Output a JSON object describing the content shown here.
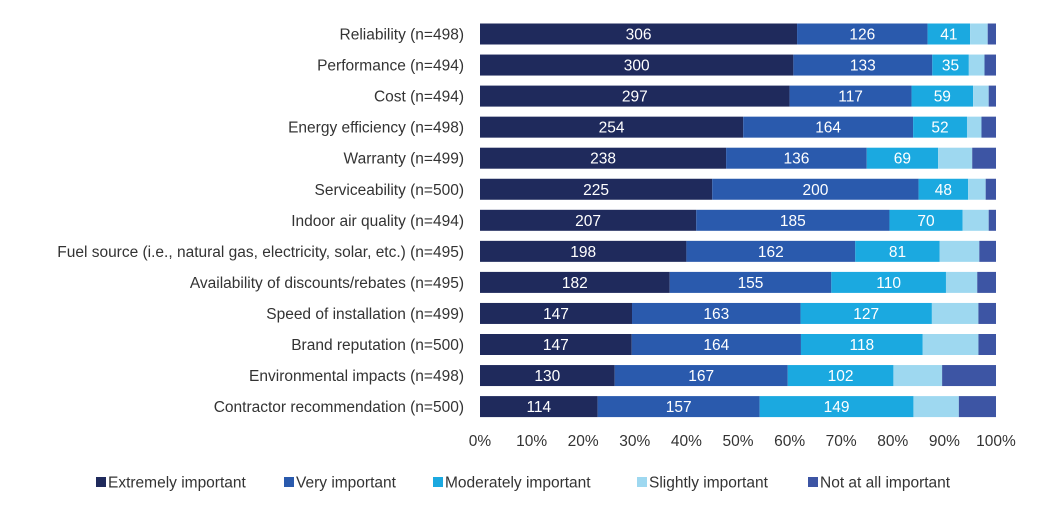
{
  "chart_data": {
    "type": "bar",
    "orientation": "horizontal",
    "stacked": "percent",
    "title": "",
    "xlabel": "",
    "ylabel": "",
    "xlim": [
      0,
      100
    ],
    "x_ticks": [
      "0%",
      "10%",
      "20%",
      "30%",
      "40%",
      "50%",
      "60%",
      "70%",
      "80%",
      "90%",
      "100%"
    ],
    "legend_position": "bottom",
    "categories": [
      "Reliability (n=498)",
      "Performance (n=494)",
      "Cost (n=494)",
      "Energy efficiency (n=498)",
      "Warranty (n=499)",
      "Serviceability (n=500)",
      "Indoor air quality (n=494)",
      "Fuel source (i.e., natural gas, electricity, solar, etc.) (n=495)",
      "Availability of discounts/rebates (n=495)",
      "Speed of installation (n=499)",
      "Brand reputation (n=500)",
      "Environmental impacts (n=498)",
      "Contractor recommendation (n=500)"
    ],
    "series": [
      {
        "name": "Extremely important",
        "color": "#1f2a5c",
        "label_color": "#ffffff",
        "show_labels": true,
        "values": [
          306,
          300,
          297,
          254,
          238,
          225,
          207,
          198,
          182,
          147,
          147,
          130,
          114
        ]
      },
      {
        "name": "Very important",
        "color": "#2a5aad",
        "label_color": "#ffffff",
        "show_labels": true,
        "values": [
          126,
          133,
          117,
          164,
          136,
          200,
          185,
          162,
          155,
          163,
          164,
          167,
          157
        ]
      },
      {
        "name": "Moderately important",
        "color": "#1ba9e0",
        "label_color": "#ffffff",
        "show_labels": true,
        "values": [
          41,
          35,
          59,
          52,
          69,
          48,
          70,
          81,
          110,
          127,
          118,
          102,
          149
        ]
      },
      {
        "name": "Slightly important",
        "color": "#9ed8f0",
        "label_color": "#ffffff",
        "show_labels": false,
        "values": [
          17,
          15,
          15,
          14,
          33,
          17,
          25,
          38,
          30,
          45,
          54,
          47,
          44
        ]
      },
      {
        "name": "Not at all important",
        "color": "#3d55a4",
        "label_color": "#ffffff",
        "show_labels": false,
        "values": [
          8,
          11,
          7,
          14,
          23,
          10,
          7,
          16,
          18,
          17,
          17,
          52,
          36
        ]
      }
    ]
  }
}
